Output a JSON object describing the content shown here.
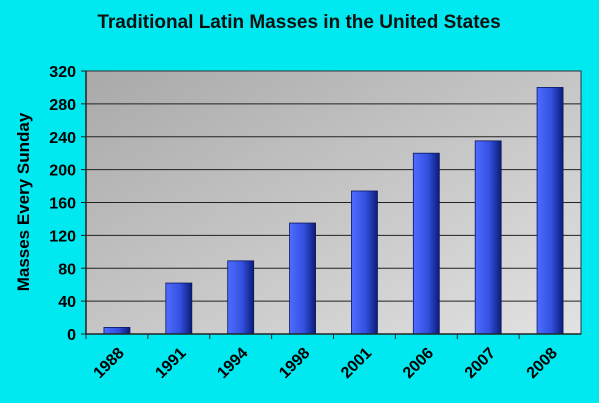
{
  "chart_data": {
    "type": "bar",
    "title": "Traditional Latin Masses in the United States",
    "xlabel": "",
    "ylabel": "Masses Every Sunday",
    "categories": [
      "1988",
      "1991",
      "1994",
      "1998",
      "2001",
      "2006",
      "2007",
      "2008"
    ],
    "values": [
      8,
      62,
      89,
      135,
      174,
      220,
      235,
      300
    ],
    "ylim": [
      0,
      320
    ],
    "yticks": [
      0,
      40,
      80,
      120,
      160,
      200,
      240,
      280,
      320
    ],
    "grid": true,
    "legend": "none",
    "colors": {
      "background": "#00e8f0",
      "plot_area": "#c0c0c0",
      "bar": "#3b58e8",
      "bar_dark": "#0a1a7a"
    }
  }
}
